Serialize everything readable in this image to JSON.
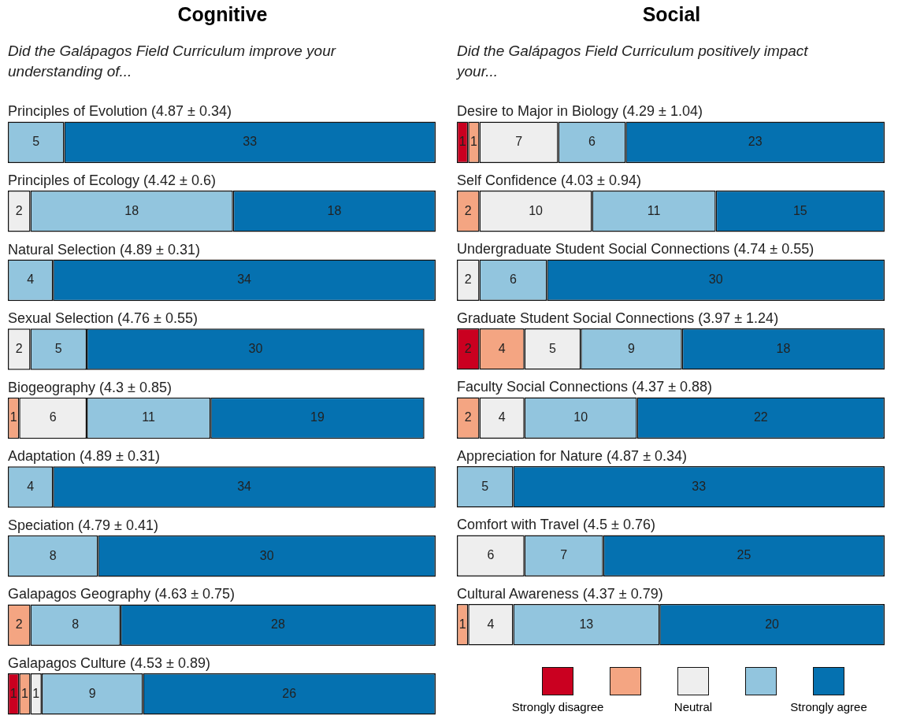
{
  "chart_data": [
    {
      "type": "bar",
      "orientation": "horizontal",
      "stacked": true,
      "data_labels": true,
      "tick_labels": "y",
      "title": "Cognitive",
      "subtitle": "Did the Galápagos Field Curriculum improve your understanding of...",
      "xlim": [
        0,
        38
      ],
      "categories": [
        "Principles of Evolution (4.87 ± 0.34)",
        "Principles of Ecology (4.42 ± 0.6)",
        "Natural Selection (4.89 ± 0.31)",
        "Sexual Selection (4.76 ± 0.55)",
        "Biogeography (4.3 ± 0.85)",
        "Adaptation (4.89 ± 0.31)",
        "Speciation (4.79 ± 0.41)",
        "Galapagos Geography (4.63 ± 0.75)",
        "Galapagos Culture (4.53 ± 0.89)"
      ],
      "series": [
        {
          "color": "#ca0020",
          "values": [
            null,
            null,
            null,
            null,
            null,
            null,
            null,
            null,
            1
          ]
        },
        {
          "color": "#f4a582",
          "values": [
            null,
            null,
            null,
            null,
            1,
            null,
            null,
            2,
            1
          ]
        },
        {
          "color": "#eeeeee",
          "values": [
            null,
            2,
            null,
            2,
            6,
            null,
            null,
            null,
            1
          ]
        },
        {
          "color": "#92c5de",
          "values": [
            5,
            18,
            4,
            5,
            11,
            4,
            8,
            8,
            9
          ]
        },
        {
          "color": "#0571b0",
          "values": [
            33,
            18,
            34,
            30,
            19,
            34,
            30,
            28,
            26
          ]
        }
      ]
    },
    {
      "type": "bar",
      "orientation": "horizontal",
      "stacked": true,
      "data_labels": true,
      "tick_labels": "y",
      "legend": "bottom right",
      "title": "Social",
      "subtitle": "Did the Galápagos Field Curriculum positively impact your...",
      "xlim": [
        0,
        38
      ],
      "categories": [
        "Desire to Major in Biology (4.29 ± 1.04)",
        "Self Confidence (4.03 ± 0.94)",
        "Undergraduate Student Social Connections (4.74 ± 0.55)",
        "Graduate Student Social Connections (3.97 ± 1.24)",
        "Faculty Social Connections (4.37 ± 0.88)",
        "Appreciation for Nature (4.87 ± 0.34)",
        "Comfort with Travel (4.5 ± 0.76)",
        "Cultural Awareness (4.37 ± 0.79)"
      ],
      "series": [
        {
          "name": "Strongly disagree",
          "color": "#ca0020",
          "values": [
            1,
            null,
            null,
            2,
            null,
            null,
            null,
            null
          ]
        },
        {
          "color": "#f4a582",
          "values": [
            1,
            2,
            null,
            4,
            2,
            null,
            null,
            1
          ]
        },
        {
          "name": "Neutral",
          "color": "#eeeeee",
          "values": [
            7,
            10,
            2,
            5,
            4,
            null,
            6,
            4
          ]
        },
        {
          "color": "#92c5de",
          "values": [
            6,
            11,
            6,
            9,
            10,
            5,
            7,
            13
          ]
        },
        {
          "name": "Strongly agree",
          "color": "#0571b0",
          "values": [
            23,
            15,
            30,
            18,
            22,
            33,
            25,
            20
          ]
        }
      ]
    }
  ]
}
